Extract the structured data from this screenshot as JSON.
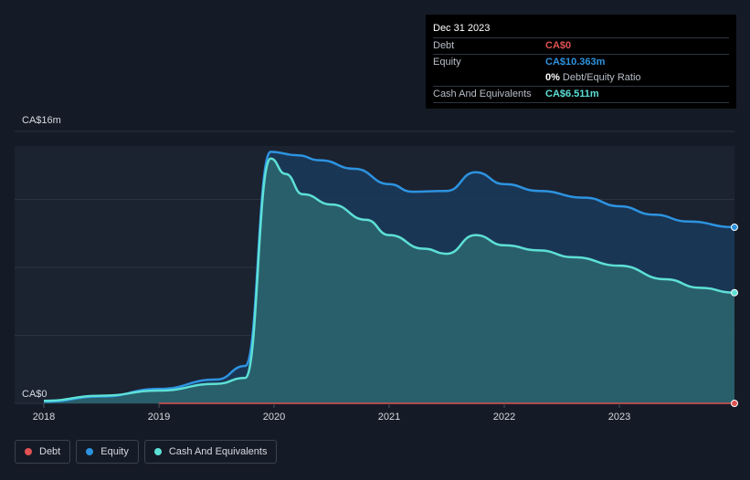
{
  "tooltip": {
    "date": "Dec 31 2023",
    "rows": [
      {
        "label": "Debt",
        "value": "CA$0"
      },
      {
        "label": "Equity",
        "value": "CA$10.363m"
      },
      {
        "label": "",
        "value": "0%",
        "suffix": "Debt/Equity Ratio"
      },
      {
        "label": "Cash And Equivalents",
        "value": "CA$6.511m"
      }
    ]
  },
  "legend": [
    {
      "label": "Debt"
    },
    {
      "label": "Equity"
    },
    {
      "label": "Cash And Equivalents"
    }
  ],
  "colors": {
    "debt": "#e05252",
    "equity": "#2d93e0",
    "cash": "#5de0d6"
  },
  "chart_data": {
    "type": "area",
    "title": "",
    "ylabel_top": "CA$16m",
    "ylabel_bottom": "CA$0",
    "ylim": [
      0,
      16
    ],
    "xlim": [
      2018,
      2024
    ],
    "x_ticks": [
      "2018",
      "2019",
      "2020",
      "2021",
      "2022",
      "2023"
    ],
    "series": [
      {
        "name": "Equity",
        "points": [
          [
            2018.0,
            0.1
          ],
          [
            2018.5,
            0.4
          ],
          [
            2019.0,
            0.85
          ],
          [
            2019.5,
            1.4
          ],
          [
            2019.75,
            2.2
          ],
          [
            2019.97,
            14.8
          ],
          [
            2020.2,
            14.6
          ],
          [
            2020.4,
            14.3
          ],
          [
            2020.7,
            13.8
          ],
          [
            2021.0,
            12.9
          ],
          [
            2021.2,
            12.45
          ],
          [
            2021.5,
            12.5
          ],
          [
            2021.75,
            13.6
          ],
          [
            2022.0,
            12.9
          ],
          [
            2022.3,
            12.5
          ],
          [
            2022.7,
            12.1
          ],
          [
            2023.0,
            11.6
          ],
          [
            2023.3,
            11.1
          ],
          [
            2023.6,
            10.7
          ],
          [
            2024.0,
            10.363
          ]
        ]
      },
      {
        "name": "Cash And Equivalents",
        "points": [
          [
            2018.0,
            0.15
          ],
          [
            2018.5,
            0.45
          ],
          [
            2019.0,
            0.75
          ],
          [
            2019.5,
            1.15
          ],
          [
            2019.75,
            1.5
          ],
          [
            2019.97,
            14.4
          ],
          [
            2020.1,
            13.5
          ],
          [
            2020.25,
            12.3
          ],
          [
            2020.5,
            11.7
          ],
          [
            2020.8,
            10.8
          ],
          [
            2021.0,
            9.9
          ],
          [
            2021.3,
            9.1
          ],
          [
            2021.5,
            8.8
          ],
          [
            2021.75,
            9.9
          ],
          [
            2022.0,
            9.3
          ],
          [
            2022.3,
            9.0
          ],
          [
            2022.6,
            8.6
          ],
          [
            2023.0,
            8.1
          ],
          [
            2023.4,
            7.3
          ],
          [
            2023.7,
            6.8
          ],
          [
            2024.0,
            6.511
          ]
        ]
      },
      {
        "name": "Debt",
        "points": [
          [
            2019.0,
            0.0
          ],
          [
            2024.0,
            0.0
          ]
        ]
      }
    ]
  }
}
